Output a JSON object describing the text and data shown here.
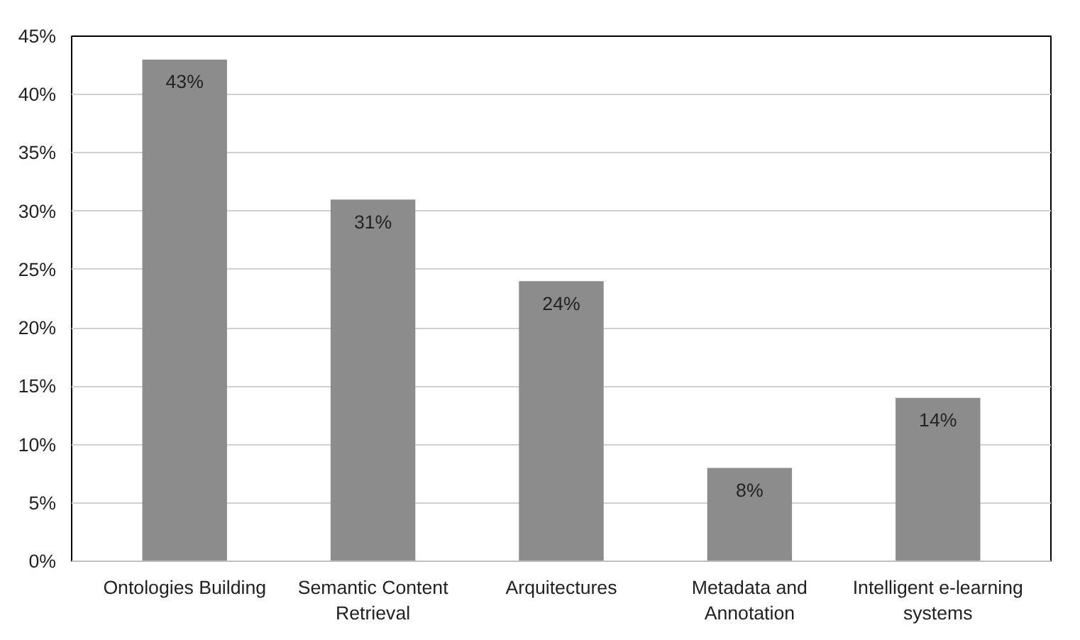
{
  "chart_data": {
    "type": "bar",
    "categories": [
      "Ontologies Building",
      "Semantic Content Retrieval",
      "Arquitectures",
      "Metadata and Annotation",
      "Intelligent e-learning systems"
    ],
    "values": [
      43,
      31,
      24,
      8,
      14
    ],
    "value_labels": [
      "43%",
      "31%",
      "24%",
      "8%",
      "14%"
    ],
    "color": "#8c8c8c",
    "ylim": [
      0,
      45
    ],
    "yticks": [
      {
        "value": 0,
        "label": "0%"
      },
      {
        "value": 5,
        "label": "5%"
      },
      {
        "value": 10,
        "label": "10%"
      },
      {
        "value": 15,
        "label": "15%"
      },
      {
        "value": 20,
        "label": "20%"
      },
      {
        "value": 25,
        "label": "25%"
      },
      {
        "value": 30,
        "label": "30%"
      },
      {
        "value": 35,
        "label": "35%"
      },
      {
        "value": 40,
        "label": "40%"
      },
      {
        "value": 45,
        "label": "45%"
      }
    ],
    "grid": "y"
  }
}
